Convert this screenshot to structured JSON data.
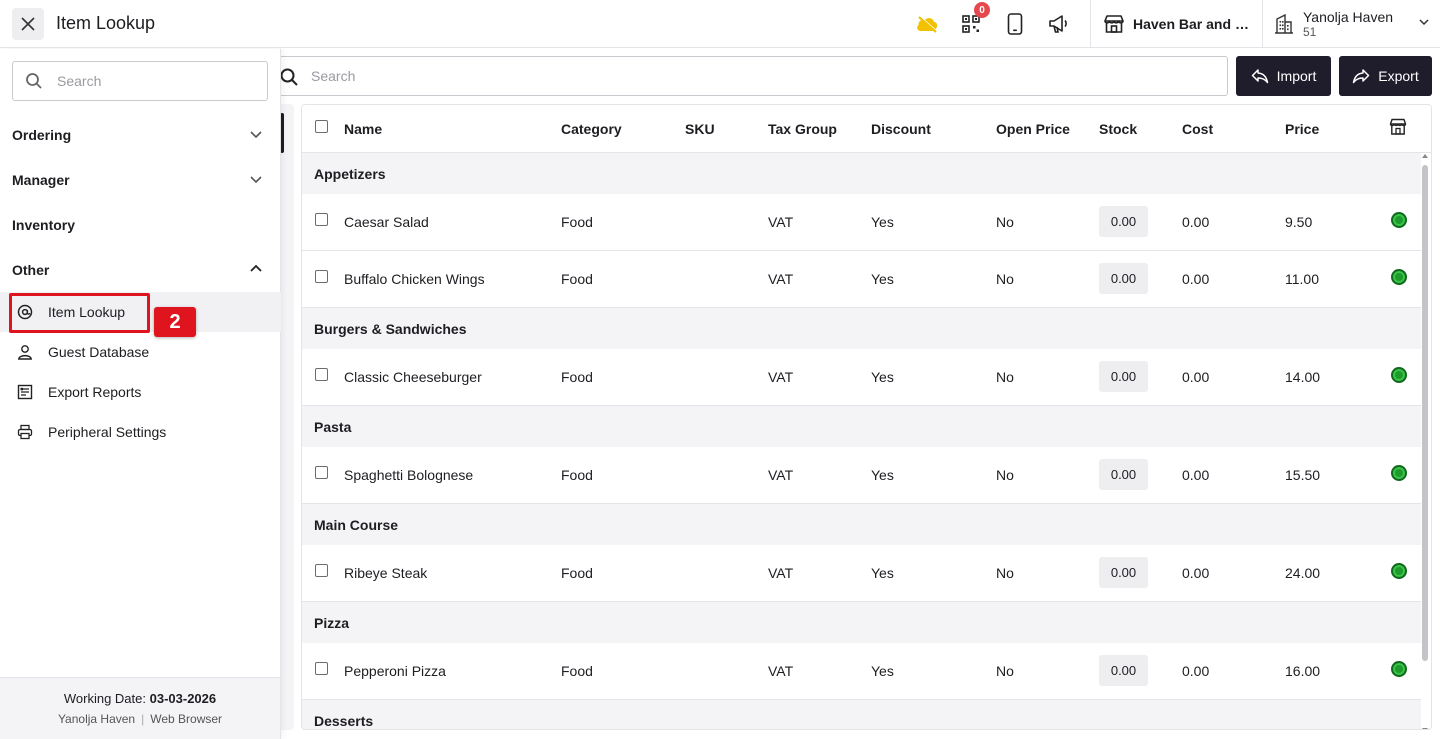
{
  "header": {
    "title": "Item Lookup",
    "notification_count": "0",
    "store_name": "Haven Bar and Restaurant",
    "property_name": "Yanolja Haven",
    "property_id": "51"
  },
  "sidebar": {
    "search_placeholder": "Search",
    "groups": [
      {
        "label": "Ordering"
      },
      {
        "label": "Manager"
      },
      {
        "label": "Inventory"
      },
      {
        "label": "Other"
      }
    ],
    "items": [
      {
        "label": "Item Lookup"
      },
      {
        "label": "Guest Database"
      },
      {
        "label": "Export Reports"
      },
      {
        "label": "Peripheral Settings"
      }
    ],
    "step_badge": "2",
    "footer": {
      "working_date_label": "Working Date:",
      "working_date": "03-03-2026",
      "property": "Yanolja Haven",
      "client": "Web Browser"
    }
  },
  "toolbar": {
    "search_placeholder": "Search",
    "import_label": "Import",
    "export_label": "Export"
  },
  "table": {
    "columns": [
      "Name",
      "Category",
      "SKU",
      "Tax Group",
      "Discount",
      "Open Price",
      "Stock",
      "Cost",
      "Price"
    ],
    "groups": [
      {
        "name": "Appetizers",
        "items": [
          {
            "name": "Caesar Salad",
            "category": "Food",
            "sku": "",
            "tax": "VAT",
            "discount": "Yes",
            "open_price": "No",
            "stock": "0.00",
            "cost": "0.00",
            "price": "9.50"
          },
          {
            "name": "Buffalo Chicken Wings",
            "category": "Food",
            "sku": "",
            "tax": "VAT",
            "discount": "Yes",
            "open_price": "No",
            "stock": "0.00",
            "cost": "0.00",
            "price": "11.00"
          }
        ]
      },
      {
        "name": "Burgers & Sandwiches",
        "items": [
          {
            "name": "Classic Cheeseburger",
            "category": "Food",
            "sku": "",
            "tax": "VAT",
            "discount": "Yes",
            "open_price": "No",
            "stock": "0.00",
            "cost": "0.00",
            "price": "14.00"
          }
        ]
      },
      {
        "name": "Pasta",
        "items": [
          {
            "name": "Spaghetti Bolognese",
            "category": "Food",
            "sku": "",
            "tax": "VAT",
            "discount": "Yes",
            "open_price": "No",
            "stock": "0.00",
            "cost": "0.00",
            "price": "15.50"
          }
        ]
      },
      {
        "name": "Main Course",
        "items": [
          {
            "name": "Ribeye Steak",
            "category": "Food",
            "sku": "",
            "tax": "VAT",
            "discount": "Yes",
            "open_price": "No",
            "stock": "0.00",
            "cost": "0.00",
            "price": "24.00"
          }
        ]
      },
      {
        "name": "Pizza",
        "items": [
          {
            "name": "Pepperoni Pizza",
            "category": "Food",
            "sku": "",
            "tax": "VAT",
            "discount": "Yes",
            "open_price": "No",
            "stock": "0.00",
            "cost": "0.00",
            "price": "16.00"
          }
        ]
      },
      {
        "name": "Desserts",
        "items": []
      }
    ]
  },
  "colors": {
    "accent_dark": "#1f1c2c",
    "status_green": "#1a9b2a",
    "highlight_red": "#e0141e",
    "cloud_yellow": "#f2c200"
  }
}
